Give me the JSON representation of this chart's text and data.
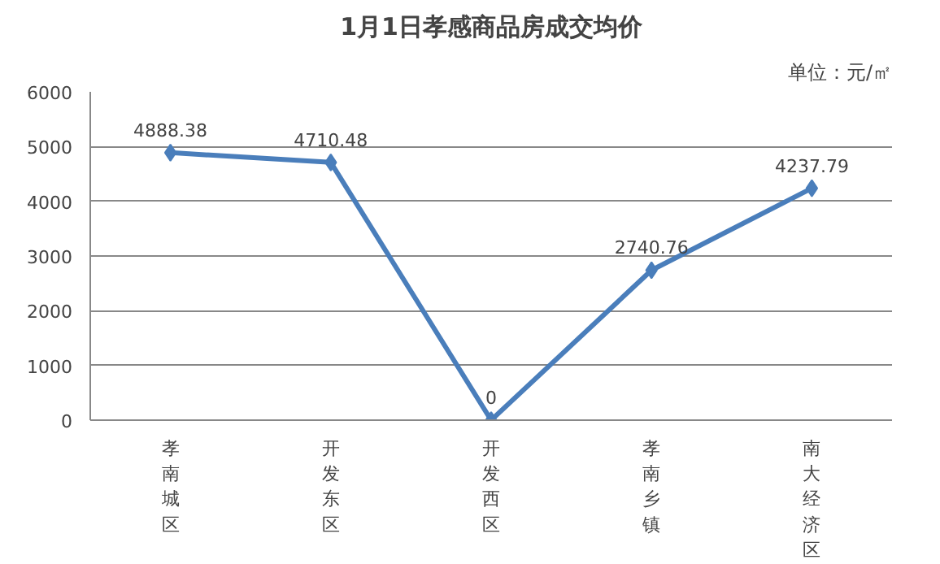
{
  "chart_data": {
    "type": "line",
    "title": "1月1日孝感商品房成交均价",
    "annotations": [
      "单位：元/㎡"
    ],
    "categories": [
      "孝南城区",
      "开发东区",
      "开发西区",
      "孝南乡镇",
      "南大经济区"
    ],
    "series": [
      {
        "color": "#4a7ebb",
        "values": [
          4888.38,
          4710.48,
          0,
          2740.76,
          4237.79
        ]
      }
    ],
    "ylim": [
      0,
      6000
    ],
    "yticks": [
      0,
      1000,
      2000,
      3000,
      4000,
      5000,
      6000
    ],
    "grid": "y",
    "marker": "diamond",
    "line_style": "solid",
    "data_labels": true
  }
}
